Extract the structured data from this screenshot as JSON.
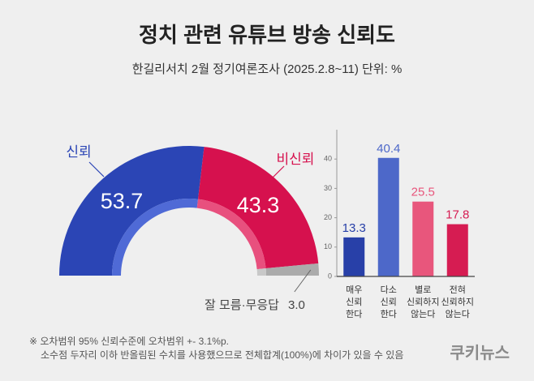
{
  "header": {
    "title": "정치 관련 유튜브 방송 신뢰도",
    "subtitle": "한길리서치 2월 정기여론조사 (2025.2.8~11) 단위: %"
  },
  "chart_data": [
    {
      "type": "semi-donut",
      "categories": [
        "신뢰",
        "비신뢰",
        "잘 모름·무응답"
      ],
      "values": [
        53.7,
        43.3,
        3.0
      ],
      "value_labels": [
        "53.7",
        "43.3",
        "3.0"
      ],
      "colors": [
        "#2b45b5",
        "#d6114e",
        "#ababab"
      ]
    },
    {
      "type": "bar",
      "categories": [
        [
          "매우",
          "신뢰",
          "한다"
        ],
        [
          "다소",
          "신뢰",
          "한다"
        ],
        [
          "별로",
          "신뢰하지",
          "않는다"
        ],
        [
          "전혀",
          "신뢰하지",
          "않는다"
        ]
      ],
      "values": [
        13.3,
        40.4,
        25.5,
        17.8
      ],
      "colors": [
        "#2840a8",
        "#4d68c9",
        "#e8567c",
        "#d61c52"
      ],
      "ylim": [
        0,
        50
      ],
      "yticks": [
        0,
        10,
        20,
        30,
        40
      ]
    }
  ],
  "footer": {
    "notes": [
      "※ 오차범위 95% 신뢰수준에 오차범위 +- 3.1%p.",
      "소수점 두자리 이하 반올림된 수치를 사용했으므로 전체합계(100%)에 차이가 있을 수 있음"
    ],
    "brand": "쿠키뉴스"
  }
}
